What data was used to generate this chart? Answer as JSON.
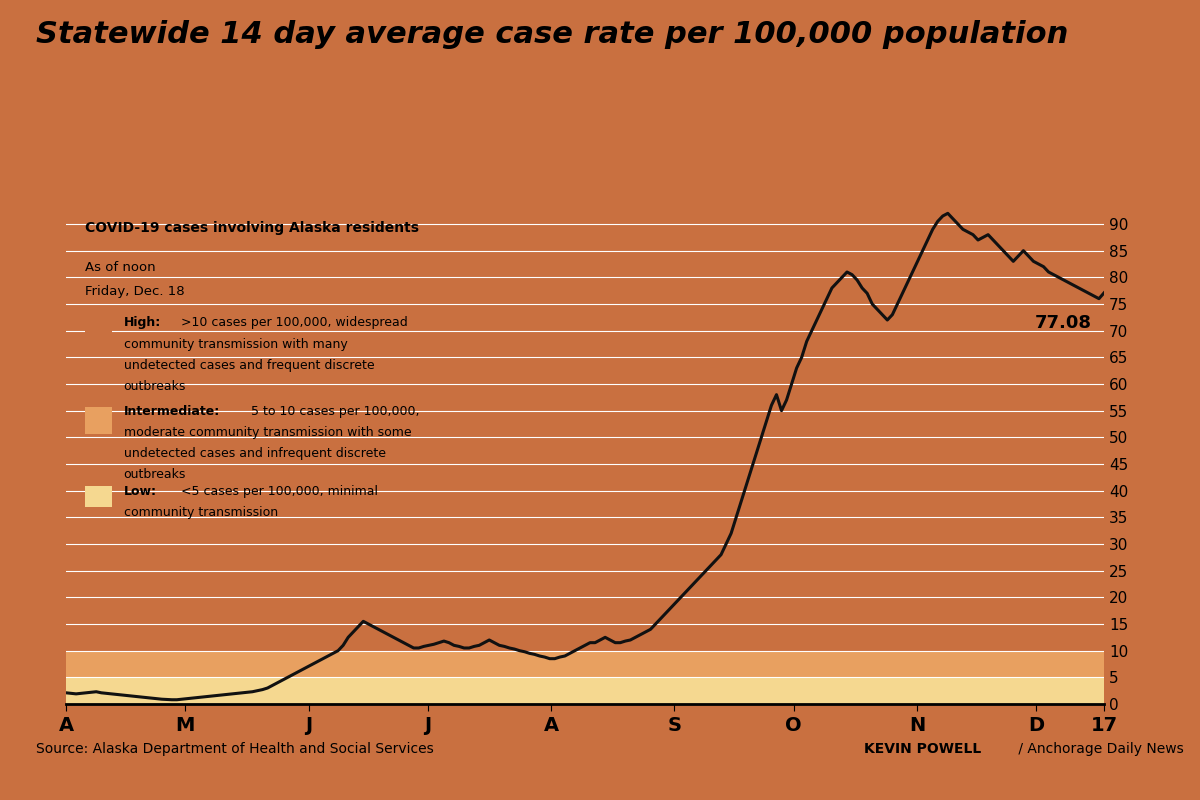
{
  "title": "Statewide 14 day average case rate per 100,000 population",
  "subtitle_line1": "COVID-19 cases involving Alaska residents",
  "subtitle_line2": "As of noon",
  "subtitle_line3": "Friday, Dec. 18",
  "x_labels": [
    "A",
    "M",
    "J",
    "J",
    "A",
    "S",
    "O",
    "N",
    "D",
    "17"
  ],
  "y_ticks": [
    0,
    5,
    10,
    15,
    20,
    25,
    30,
    35,
    40,
    45,
    50,
    55,
    60,
    65,
    70,
    75,
    80,
    85,
    90
  ],
  "y_max": 93,
  "color_high": "#c97040",
  "color_intermediate": "#e8a060",
  "color_low": "#f5d890",
  "line_color": "#111111",
  "last_value_label": "77.08",
  "source_text": "Source: Alaska Department of Health and Social Services",
  "credit_bold": "KEVIN POWELL",
  "credit_normal": " / Anchorage Daily News",
  "y_data": [
    2.1,
    2.0,
    1.9,
    2.0,
    2.1,
    2.2,
    2.3,
    2.1,
    2.0,
    1.9,
    1.8,
    1.7,
    1.6,
    1.5,
    1.4,
    1.3,
    1.2,
    1.1,
    1.0,
    0.9,
    0.85,
    0.8,
    0.8,
    0.9,
    1.0,
    1.1,
    1.2,
    1.3,
    1.4,
    1.5,
    1.6,
    1.7,
    1.8,
    1.9,
    2.0,
    2.1,
    2.2,
    2.3,
    2.5,
    2.7,
    3.0,
    3.5,
    4.0,
    4.5,
    5.0,
    5.5,
    6.0,
    6.5,
    7.0,
    7.5,
    8.0,
    8.5,
    9.0,
    9.5,
    10.0,
    11.0,
    12.5,
    13.5,
    14.5,
    15.5,
    15.0,
    14.5,
    14.0,
    13.5,
    13.0,
    12.5,
    12.0,
    11.5,
    11.0,
    10.5,
    10.5,
    10.8,
    11.0,
    11.2,
    11.5,
    11.8,
    11.5,
    11.0,
    10.8,
    10.5,
    10.5,
    10.8,
    11.0,
    11.5,
    12.0,
    11.5,
    11.0,
    10.8,
    10.5,
    10.3,
    10.0,
    9.8,
    9.5,
    9.3,
    9.0,
    8.8,
    8.5,
    8.5,
    8.8,
    9.0,
    9.5,
    10.0,
    10.5,
    11.0,
    11.5,
    11.5,
    12.0,
    12.5,
    12.0,
    11.5,
    11.5,
    11.8,
    12.0,
    12.5,
    13.0,
    13.5,
    14.0,
    15.0,
    16.0,
    17.0,
    18.0,
    19.0,
    20.0,
    21.0,
    22.0,
    23.0,
    24.0,
    25.0,
    26.0,
    27.0,
    28.0,
    30.0,
    32.0,
    35.0,
    38.0,
    41.0,
    44.0,
    47.0,
    50.0,
    53.0,
    56.0,
    58.0,
    55.0,
    57.0,
    60.0,
    63.0,
    65.0,
    68.0,
    70.0,
    72.0,
    74.0,
    76.0,
    78.0,
    79.0,
    80.0,
    81.0,
    80.5,
    79.5,
    78.0,
    77.0,
    75.0,
    74.0,
    73.0,
    72.0,
    73.0,
    75.0,
    77.0,
    79.0,
    81.0,
    83.0,
    85.0,
    87.0,
    89.0,
    90.5,
    91.5,
    92.0,
    91.0,
    90.0,
    89.0,
    88.5,
    88.0,
    87.0,
    87.5,
    88.0,
    87.0,
    86.0,
    85.0,
    84.0,
    83.0,
    84.0,
    85.0,
    84.0,
    83.0,
    82.5,
    82.0,
    81.0,
    80.5,
    80.0,
    79.5,
    79.0,
    78.5,
    78.0,
    77.5,
    77.0,
    76.5,
    76.0,
    77.08
  ]
}
